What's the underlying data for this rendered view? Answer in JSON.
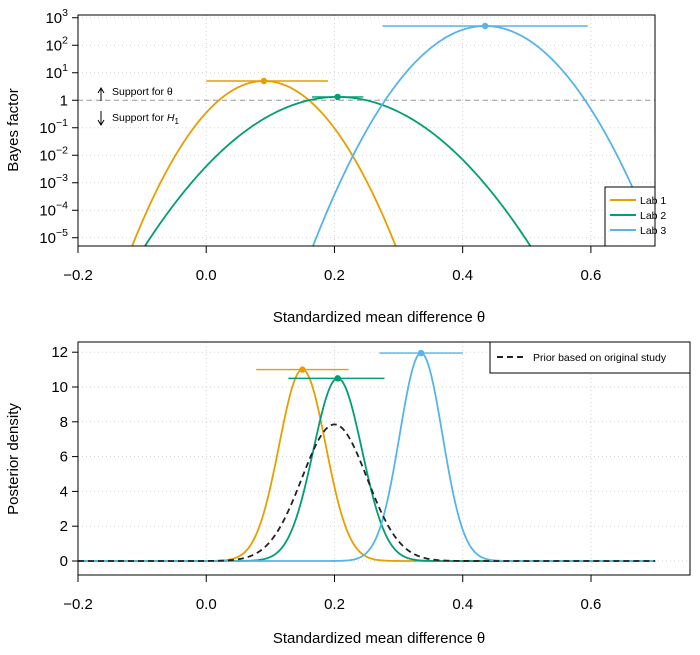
{
  "chart_data": [
    {
      "type": "line",
      "panel": "top",
      "ylabel": "Bayes factor",
      "xlabel": "Standardized mean difference θ",
      "y_scale": "log",
      "xlim": [
        -0.2,
        0.7
      ],
      "ylim_log10": [
        -5.3,
        3.1
      ],
      "xticks": [
        -0.2,
        0.0,
        0.2,
        0.4,
        0.6
      ],
      "xtick_labels": [
        "−0.2",
        "0.0",
        "0.2",
        "0.4",
        "0.6"
      ],
      "yticks": [
        {
          "exp": 3,
          "base": "10",
          "sup": "3"
        },
        {
          "exp": 2,
          "base": "10",
          "sup": "2"
        },
        {
          "exp": 1,
          "base": "10",
          "sup": "1"
        },
        {
          "exp": 0,
          "base": "1",
          "sup": ""
        },
        {
          "exp": -1,
          "base": "10",
          "sup": "−1"
        },
        {
          "exp": -2,
          "base": "10",
          "sup": "−2"
        },
        {
          "exp": -3,
          "base": "10",
          "sup": "−3"
        },
        {
          "exp": -4,
          "base": "10",
          "sup": "−4"
        },
        {
          "exp": -5,
          "base": "10",
          "sup": "−5"
        }
      ],
      "grid": true,
      "reference_line": {
        "y": 1,
        "style": "dashed"
      },
      "annotations": {
        "support_theta": "Support for θ",
        "support_h1_prefix": "Support for ",
        "support_h1_var": "H",
        "support_h1_sub": "1"
      },
      "legend": {
        "placement": "bottom-right"
      },
      "series": [
        {
          "name": "Lab 1",
          "color": "#E69F00",
          "peak_x": 0.09,
          "peak_log10_bf": 0.7,
          "curvature": 142,
          "interval": [
            0.0,
            0.19
          ]
        },
        {
          "name": "Lab 2",
          "color": "#009E73",
          "peak_x": 0.205,
          "peak_log10_bf": 0.12,
          "curvature": 60,
          "interval": [
            0.165,
            0.245
          ]
        },
        {
          "name": "Lab 3",
          "color": "#56B4E9",
          "peak_x": 0.435,
          "peak_log10_bf": 2.7,
          "curvature": 111,
          "interval": [
            0.275,
            0.595
          ]
        }
      ]
    },
    {
      "type": "line",
      "panel": "bottom",
      "ylabel": "Posterior density",
      "xlabel": "Standardized mean difference θ",
      "xlim": [
        -0.2,
        0.7
      ],
      "ylim": [
        0,
        12.5
      ],
      "xticks": [
        -0.2,
        0.0,
        0.2,
        0.4,
        0.6
      ],
      "xtick_labels": [
        "−0.2",
        "0.0",
        "0.2",
        "0.4",
        "0.6"
      ],
      "yticks": [
        0,
        2,
        4,
        6,
        8,
        10,
        12
      ],
      "grid": true,
      "legend": {
        "placement": "top-right"
      },
      "series": [
        {
          "name": "Lab 1",
          "color": "#E69F00",
          "mean": 0.15,
          "peak": 11.0,
          "interval": [
            0.078,
            0.222
          ]
        },
        {
          "name": "Lab 2",
          "color": "#009E73",
          "mean": 0.205,
          "peak": 10.5,
          "interval": [
            0.128,
            0.278
          ]
        },
        {
          "name": "Lab 3",
          "color": "#56B4E9",
          "mean": 0.335,
          "peak": 11.95,
          "interval": [
            0.27,
            0.4
          ]
        },
        {
          "name": "Prior based on original study",
          "color": "#222222",
          "dashed": true,
          "mean": 0.2,
          "peak": 7.85
        }
      ]
    }
  ]
}
